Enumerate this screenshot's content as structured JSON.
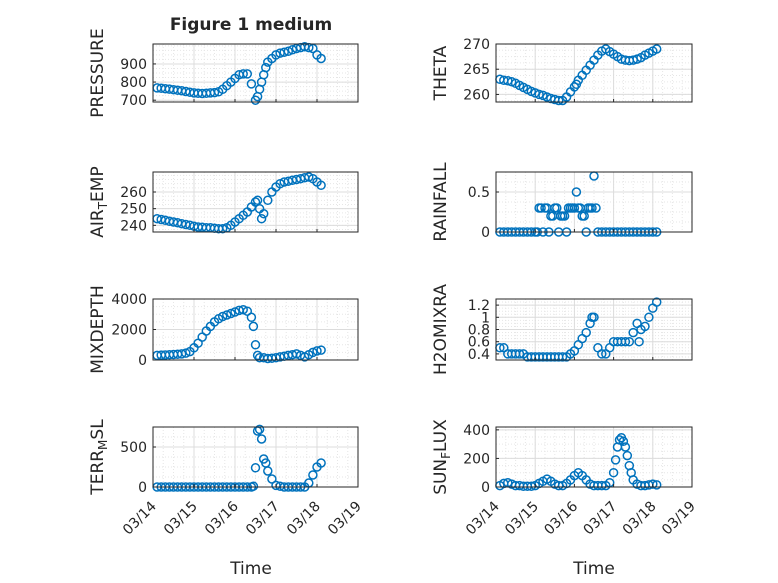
{
  "figure_title": "Figure 1 medium",
  "x_axis_label": "Time",
  "x_tick_labels": [
    "03/14",
    "03/15",
    "03/16",
    "03/17",
    "03/18",
    "03/19"
  ],
  "colors": {
    "marker": "#0072BD",
    "grid": "#dcdcdc",
    "axis": "#262626"
  },
  "chart_data": [
    {
      "type": "scatter",
      "title": "Figure 1 medium",
      "ylabel": "PRESSURE",
      "ylabel_sub": "",
      "ylim": [
        690,
        1010
      ],
      "yticks": [
        700,
        800,
        900
      ],
      "xlim": [
        0,
        5
      ],
      "show_xticks": false,
      "x": [
        0.1,
        0.2,
        0.3,
        0.4,
        0.5,
        0.6,
        0.7,
        0.8,
        0.9,
        1.0,
        1.1,
        1.2,
        1.3,
        1.4,
        1.5,
        1.6,
        1.7,
        1.8,
        1.9,
        2.0,
        2.1,
        2.2,
        2.3,
        2.4,
        2.5,
        2.55,
        2.6,
        2.65,
        2.7,
        2.75,
        2.8,
        2.9,
        3.0,
        3.1,
        3.2,
        3.3,
        3.4,
        3.5,
        3.6,
        3.7,
        3.8,
        3.9,
        4.0,
        4.1
      ],
      "y": [
        768,
        766,
        763,
        761,
        758,
        755,
        752,
        748,
        744,
        740,
        738,
        737,
        738,
        740,
        742,
        746,
        760,
        780,
        800,
        820,
        840,
        845,
        845,
        790,
        700,
        720,
        760,
        800,
        840,
        880,
        910,
        930,
        950,
        960,
        965,
        970,
        978,
        985,
        990,
        995,
        990,
        985,
        950,
        930
      ]
    },
    {
      "type": "scatter",
      "title": "",
      "ylabel": "THETA",
      "ylabel_sub": "",
      "ylim": [
        258.5,
        270
      ],
      "yticks": [
        260,
        265,
        270
      ],
      "xlim": [
        0,
        5
      ],
      "show_xticks": false,
      "x": [
        0.1,
        0.2,
        0.3,
        0.4,
        0.5,
        0.6,
        0.7,
        0.8,
        0.9,
        1.0,
        1.1,
        1.2,
        1.3,
        1.4,
        1.5,
        1.6,
        1.7,
        1.8,
        1.9,
        2.0,
        2.05,
        2.1,
        2.2,
        2.3,
        2.4,
        2.5,
        2.6,
        2.7,
        2.8,
        2.9,
        3.0,
        3.1,
        3.2,
        3.3,
        3.4,
        3.5,
        3.6,
        3.7,
        3.8,
        3.9,
        4.0,
        4.1
      ],
      "y": [
        263,
        262.8,
        262.7,
        262.5,
        262.2,
        261.8,
        261.4,
        261,
        260.6,
        260.3,
        260,
        259.8,
        259.5,
        259.2,
        259,
        258.8,
        258.8,
        259.5,
        260.5,
        261.5,
        262,
        262.8,
        263.8,
        264.8,
        265.8,
        266.8,
        267.8,
        268.6,
        269,
        268.5,
        268,
        267.5,
        267,
        266.8,
        266.7,
        266.8,
        267,
        267.3,
        267.8,
        268.2,
        268.6,
        269
      ]
    },
    {
      "type": "scatter",
      "title": "",
      "ylabel": "AIR",
      "ylabel_sub": "T",
      "ylabel_suffix": "EMP",
      "ylim": [
        236,
        272
      ],
      "yticks": [
        240,
        250,
        260
      ],
      "xlim": [
        0,
        5
      ],
      "show_xticks": false,
      "x": [
        0.1,
        0.2,
        0.3,
        0.4,
        0.5,
        0.6,
        0.7,
        0.8,
        0.9,
        1.0,
        1.1,
        1.2,
        1.3,
        1.4,
        1.5,
        1.6,
        1.7,
        1.8,
        1.9,
        2.0,
        2.1,
        2.2,
        2.3,
        2.4,
        2.5,
        2.55,
        2.6,
        2.65,
        2.7,
        2.8,
        2.9,
        3.0,
        3.1,
        3.2,
        3.3,
        3.4,
        3.5,
        3.6,
        3.7,
        3.8,
        3.9,
        4.0,
        4.1
      ],
      "y": [
        244,
        243.5,
        243,
        242.5,
        242,
        241.5,
        241,
        240.5,
        240,
        239.5,
        239,
        238.8,
        238.6,
        238.5,
        238.3,
        238,
        238,
        238.5,
        240,
        242,
        244,
        246,
        248,
        251,
        254,
        255,
        250,
        244,
        247,
        255,
        260,
        263,
        265,
        266,
        266.5,
        267,
        267.5,
        268,
        268.5,
        269,
        268,
        266,
        264
      ]
    },
    {
      "type": "scatter",
      "title": "",
      "ylabel": "RAINFALL",
      "ylabel_sub": "",
      "ylim": [
        0,
        0.75
      ],
      "yticks": [
        0,
        0.5
      ],
      "ytick_labels": [
        "0",
        "0.5"
      ],
      "xlim": [
        0,
        5
      ],
      "show_xticks": false,
      "x": [
        0.1,
        0.2,
        0.3,
        0.4,
        0.5,
        0.6,
        0.7,
        0.8,
        0.9,
        1.0,
        1.05,
        1.1,
        1.15,
        1.2,
        1.25,
        1.3,
        1.35,
        1.4,
        1.45,
        1.5,
        1.55,
        1.6,
        1.65,
        1.7,
        1.75,
        1.8,
        1.85,
        1.9,
        1.95,
        2.0,
        2.05,
        2.1,
        2.15,
        2.2,
        2.25,
        2.3,
        2.35,
        2.4,
        2.45,
        2.5,
        2.55,
        2.6,
        2.7,
        2.8,
        2.9,
        3.0,
        3.1,
        3.2,
        3.3,
        3.4,
        3.5,
        3.6,
        3.7,
        3.8,
        3.9,
        4.0,
        4.1
      ],
      "y": [
        0,
        0,
        0,
        0,
        0,
        0,
        0,
        0,
        0,
        0,
        0,
        0.3,
        0.3,
        0,
        0.3,
        0.3,
        0,
        0.2,
        0.2,
        0.3,
        0.3,
        0,
        0.2,
        0.2,
        0.2,
        0,
        0.3,
        0.3,
        0.3,
        0.3,
        0.5,
        0.3,
        0.3,
        0.2,
        0.2,
        0,
        0.3,
        0.3,
        0.3,
        0.7,
        0.3,
        0,
        0,
        0,
        0,
        0,
        0,
        0,
        0,
        0,
        0,
        0,
        0,
        0,
        0,
        0,
        0
      ]
    },
    {
      "type": "scatter",
      "title": "",
      "ylabel": "MIXDEPTH",
      "ylabel_sub": "",
      "ylim": [
        0,
        4000
      ],
      "yticks": [
        0,
        2000,
        4000
      ],
      "xlim": [
        0,
        5
      ],
      "show_xticks": false,
      "x": [
        0.1,
        0.2,
        0.3,
        0.4,
        0.5,
        0.6,
        0.7,
        0.8,
        0.9,
        1.0,
        1.1,
        1.2,
        1.3,
        1.4,
        1.5,
        1.6,
        1.7,
        1.8,
        1.9,
        2.0,
        2.1,
        2.2,
        2.3,
        2.4,
        2.45,
        2.5,
        2.55,
        2.6,
        2.7,
        2.8,
        2.9,
        3.0,
        3.1,
        3.2,
        3.3,
        3.4,
        3.5,
        3.6,
        3.7,
        3.8,
        3.9,
        4.0,
        4.1
      ],
      "y": [
        300,
        320,
        330,
        340,
        360,
        380,
        400,
        450,
        550,
        800,
        1100,
        1500,
        1900,
        2200,
        2500,
        2700,
        2850,
        2950,
        3050,
        3150,
        3250,
        3300,
        3200,
        2800,
        2200,
        1000,
        300,
        150,
        150,
        100,
        120,
        150,
        200,
        250,
        300,
        350,
        400,
        300,
        200,
        350,
        500,
        600,
        650
      ]
    },
    {
      "type": "scatter",
      "title": "",
      "ylabel": "H2OMIXRA",
      "ylabel_sub": "",
      "ylim": [
        0.3,
        1.3
      ],
      "yticks": [
        0.4,
        0.6,
        0.8,
        1,
        1.2
      ],
      "ytick_labels": [
        "0.4",
        "0.6",
        "0.8",
        "1",
        "1.2"
      ],
      "xlim": [
        0,
        5
      ],
      "show_xticks": false,
      "x": [
        0.1,
        0.2,
        0.3,
        0.4,
        0.5,
        0.6,
        0.7,
        0.8,
        0.9,
        1.0,
        1.1,
        1.2,
        1.3,
        1.4,
        1.5,
        1.6,
        1.7,
        1.8,
        1.9,
        2.0,
        2.1,
        2.2,
        2.3,
        2.4,
        2.45,
        2.5,
        2.6,
        2.7,
        2.8,
        2.9,
        3.0,
        3.1,
        3.2,
        3.3,
        3.4,
        3.5,
        3.6,
        3.65,
        3.7,
        3.8,
        3.9,
        4.0,
        4.1
      ],
      "y": [
        0.5,
        0.5,
        0.4,
        0.4,
        0.4,
        0.4,
        0.4,
        0.35,
        0.35,
        0.35,
        0.35,
        0.35,
        0.35,
        0.35,
        0.35,
        0.35,
        0.35,
        0.35,
        0.4,
        0.45,
        0.55,
        0.65,
        0.75,
        0.9,
        1.0,
        1.0,
        0.5,
        0.4,
        0.4,
        0.5,
        0.6,
        0.6,
        0.6,
        0.6,
        0.6,
        0.75,
        0.9,
        0.6,
        0.8,
        0.85,
        1.0,
        1.15,
        1.25
      ]
    },
    {
      "type": "scatter",
      "title": "",
      "ylabel": "TERR",
      "ylabel_sub": "M",
      "ylabel_suffix": "SL",
      "ylim": [
        0,
        750
      ],
      "yticks": [
        0,
        500
      ],
      "xlim": [
        0,
        5
      ],
      "show_xticks": true,
      "x": [
        0.1,
        0.2,
        0.3,
        0.4,
        0.5,
        0.6,
        0.7,
        0.8,
        0.9,
        1.0,
        1.1,
        1.2,
        1.3,
        1.4,
        1.5,
        1.6,
        1.7,
        1.8,
        1.9,
        2.0,
        2.1,
        2.2,
        2.3,
        2.4,
        2.45,
        2.5,
        2.55,
        2.6,
        2.65,
        2.7,
        2.75,
        2.8,
        2.9,
        3.0,
        3.1,
        3.2,
        3.3,
        3.4,
        3.5,
        3.6,
        3.7,
        3.8,
        3.9,
        4.0,
        4.1
      ],
      "y": [
        0,
        0,
        0,
        0,
        0,
        0,
        0,
        0,
        0,
        0,
        0,
        0,
        0,
        0,
        0,
        0,
        0,
        0,
        0,
        0,
        0,
        0,
        0,
        0,
        10,
        240,
        700,
        720,
        600,
        350,
        300,
        200,
        100,
        20,
        10,
        0,
        0,
        0,
        0,
        0,
        0,
        50,
        150,
        250,
        300
      ]
    },
    {
      "type": "scatter",
      "title": "",
      "ylabel": "SUN",
      "ylabel_sub": "F",
      "ylabel_suffix": "LUX",
      "ylim": [
        0,
        420
      ],
      "yticks": [
        0,
        200,
        400
      ],
      "xlim": [
        0,
        5
      ],
      "show_xticks": true,
      "x": [
        0.1,
        0.2,
        0.3,
        0.4,
        0.5,
        0.6,
        0.7,
        0.8,
        0.9,
        1.0,
        1.1,
        1.2,
        1.3,
        1.4,
        1.5,
        1.6,
        1.7,
        1.8,
        1.9,
        2.0,
        2.1,
        2.2,
        2.3,
        2.4,
        2.5,
        2.6,
        2.7,
        2.8,
        2.9,
        3.0,
        3.05,
        3.1,
        3.15,
        3.2,
        3.25,
        3.3,
        3.35,
        3.4,
        3.45,
        3.5,
        3.6,
        3.7,
        3.8,
        3.9,
        4.0,
        4.1
      ],
      "y": [
        10,
        25,
        30,
        20,
        10,
        10,
        5,
        5,
        5,
        10,
        25,
        40,
        55,
        40,
        20,
        10,
        10,
        25,
        50,
        80,
        100,
        80,
        50,
        20,
        10,
        10,
        10,
        10,
        30,
        100,
        190,
        280,
        330,
        345,
        320,
        280,
        220,
        150,
        100,
        50,
        20,
        10,
        10,
        15,
        20,
        15
      ]
    }
  ]
}
